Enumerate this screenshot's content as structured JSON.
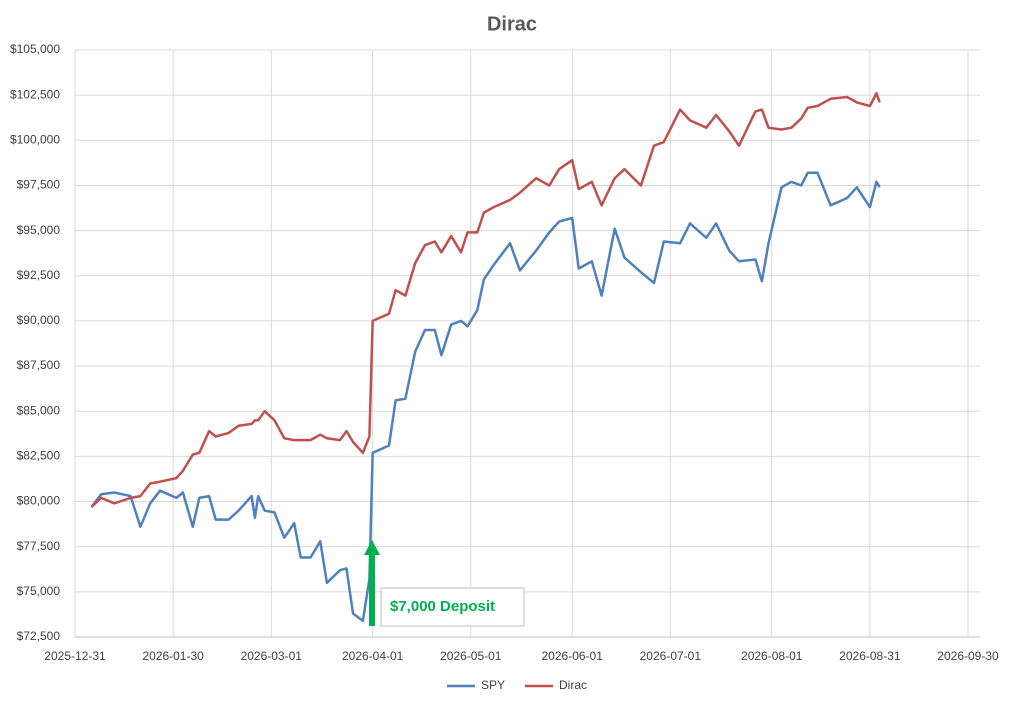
{
  "chart_data": {
    "type": "line",
    "title": "Dirac",
    "x": [
      "2026-01-05",
      "2026-01-08",
      "2026-01-12",
      "2026-01-17",
      "2026-01-20",
      "2026-01-23",
      "2026-01-26",
      "2026-01-31",
      "2026-02-02",
      "2026-02-05",
      "2026-02-07",
      "2026-02-10",
      "2026-02-12",
      "2026-02-16",
      "2026-02-19",
      "2026-02-23",
      "2026-02-24",
      "2026-02-25",
      "2026-02-27",
      "2026-03-02",
      "2026-03-05",
      "2026-03-08",
      "2026-03-10",
      "2026-03-13",
      "2026-03-16",
      "2026-03-18",
      "2026-03-22",
      "2026-03-24",
      "2026-03-26",
      "2026-03-29",
      "2026-03-31",
      "2026-04-01",
      "2026-04-06",
      "2026-04-08",
      "2026-04-11",
      "2026-04-14",
      "2026-04-17",
      "2026-04-20",
      "2026-04-22",
      "2026-04-25",
      "2026-04-28",
      "2026-04-30",
      "2026-05-03",
      "2026-05-05",
      "2026-05-08",
      "2026-05-13",
      "2026-05-16",
      "2026-05-21",
      "2026-05-25",
      "2026-05-28",
      "2026-06-01",
      "2026-06-03",
      "2026-06-07",
      "2026-06-10",
      "2026-06-14",
      "2026-06-17",
      "2026-06-22",
      "2026-06-26",
      "2026-06-29",
      "2026-07-04",
      "2026-07-07",
      "2026-07-12",
      "2026-07-15",
      "2026-07-19",
      "2026-07-22",
      "2026-07-27",
      "2026-07-29",
      "2026-07-31",
      "2026-08-04",
      "2026-08-07",
      "2026-08-10",
      "2026-08-12",
      "2026-08-15",
      "2026-08-19",
      "2026-08-24",
      "2026-08-27",
      "2026-08-31",
      "2026-09-02",
      "2026-09-03"
    ],
    "series": [
      {
        "name": "SPY",
        "color": "#4f81bd",
        "values": [
          79700,
          80400,
          80500,
          80300,
          78600,
          79900,
          80600,
          80200,
          80500,
          78600,
          80200,
          80300,
          79000,
          79000,
          79500,
          80300,
          79100,
          80300,
          79500,
          79400,
          78000,
          78800,
          76900,
          76900,
          77800,
          75500,
          76200,
          76300,
          73800,
          73400,
          75700,
          82700,
          83100,
          85600,
          85700,
          88300,
          89500,
          89500,
          88100,
          89800,
          90000,
          89700,
          90600,
          92300,
          93100,
          94300,
          92800,
          93900,
          94900,
          95500,
          95700,
          92900,
          93300,
          91400,
          95100,
          93500,
          92700,
          92100,
          94400,
          94300,
          95400,
          94600,
          95400,
          93900,
          93300,
          93400,
          92200,
          94300,
          97400,
          97700,
          97500,
          98200,
          98200,
          96400,
          96800,
          97400,
          96300,
          97700,
          97400
        ]
      },
      {
        "name": "Dirac",
        "color": "#c0504d",
        "values": [
          79700,
          80200,
          79900,
          80200,
          80300,
          81000,
          81100,
          81300,
          81700,
          82600,
          82700,
          83900,
          83600,
          83800,
          84200,
          84300,
          84500,
          84500,
          85000,
          84500,
          83500,
          83400,
          83400,
          83400,
          83700,
          83500,
          83400,
          83900,
          83300,
          82700,
          83600,
          90000,
          90400,
          91700,
          91400,
          93200,
          94200,
          94400,
          93800,
          94700,
          93800,
          94900,
          94900,
          96000,
          96300,
          96700,
          97100,
          97900,
          97500,
          98400,
          98900,
          97300,
          97700,
          96400,
          97900,
          98400,
          97500,
          99700,
          99900,
          101700,
          101100,
          100700,
          101400,
          100500,
          99700,
          101600,
          101700,
          100700,
          100600,
          100700,
          101200,
          101800,
          101900,
          102300,
          102400,
          102100,
          101900,
          102600,
          102100
        ]
      }
    ],
    "xlim": [
      "2025-12-31",
      "2026-09-30"
    ],
    "xticks": [
      "2025-12-31",
      "2026-01-30",
      "2026-03-01",
      "2026-04-01",
      "2026-05-01",
      "2026-06-01",
      "2026-07-01",
      "2026-08-01",
      "2026-08-31",
      "2026-09-30"
    ],
    "ylim": [
      72500,
      105000
    ],
    "yticks": [
      {
        "value": 72500,
        "label": "$72,500"
      },
      {
        "value": 75000,
        "label": "$75,000"
      },
      {
        "value": 77500,
        "label": "$77,500"
      },
      {
        "value": 80000,
        "label": "$80,000"
      },
      {
        "value": 82500,
        "label": "$82,500"
      },
      {
        "value": 85000,
        "label": "$85,000"
      },
      {
        "value": 87500,
        "label": "$87,500"
      },
      {
        "value": 90000,
        "label": "$90,000"
      },
      {
        "value": 92500,
        "label": "$92,500"
      },
      {
        "value": 95000,
        "label": "$95,000"
      },
      {
        "value": 97500,
        "label": "$97,500"
      },
      {
        "value": 100000,
        "label": "$100,000"
      },
      {
        "value": 102500,
        "label": "$102,500"
      },
      {
        "value": 105000,
        "label": "$105,000"
      }
    ],
    "grid": true,
    "legend": "bottom",
    "annotation": "$7,000 Deposit",
    "annotation_color": "#00b050"
  }
}
